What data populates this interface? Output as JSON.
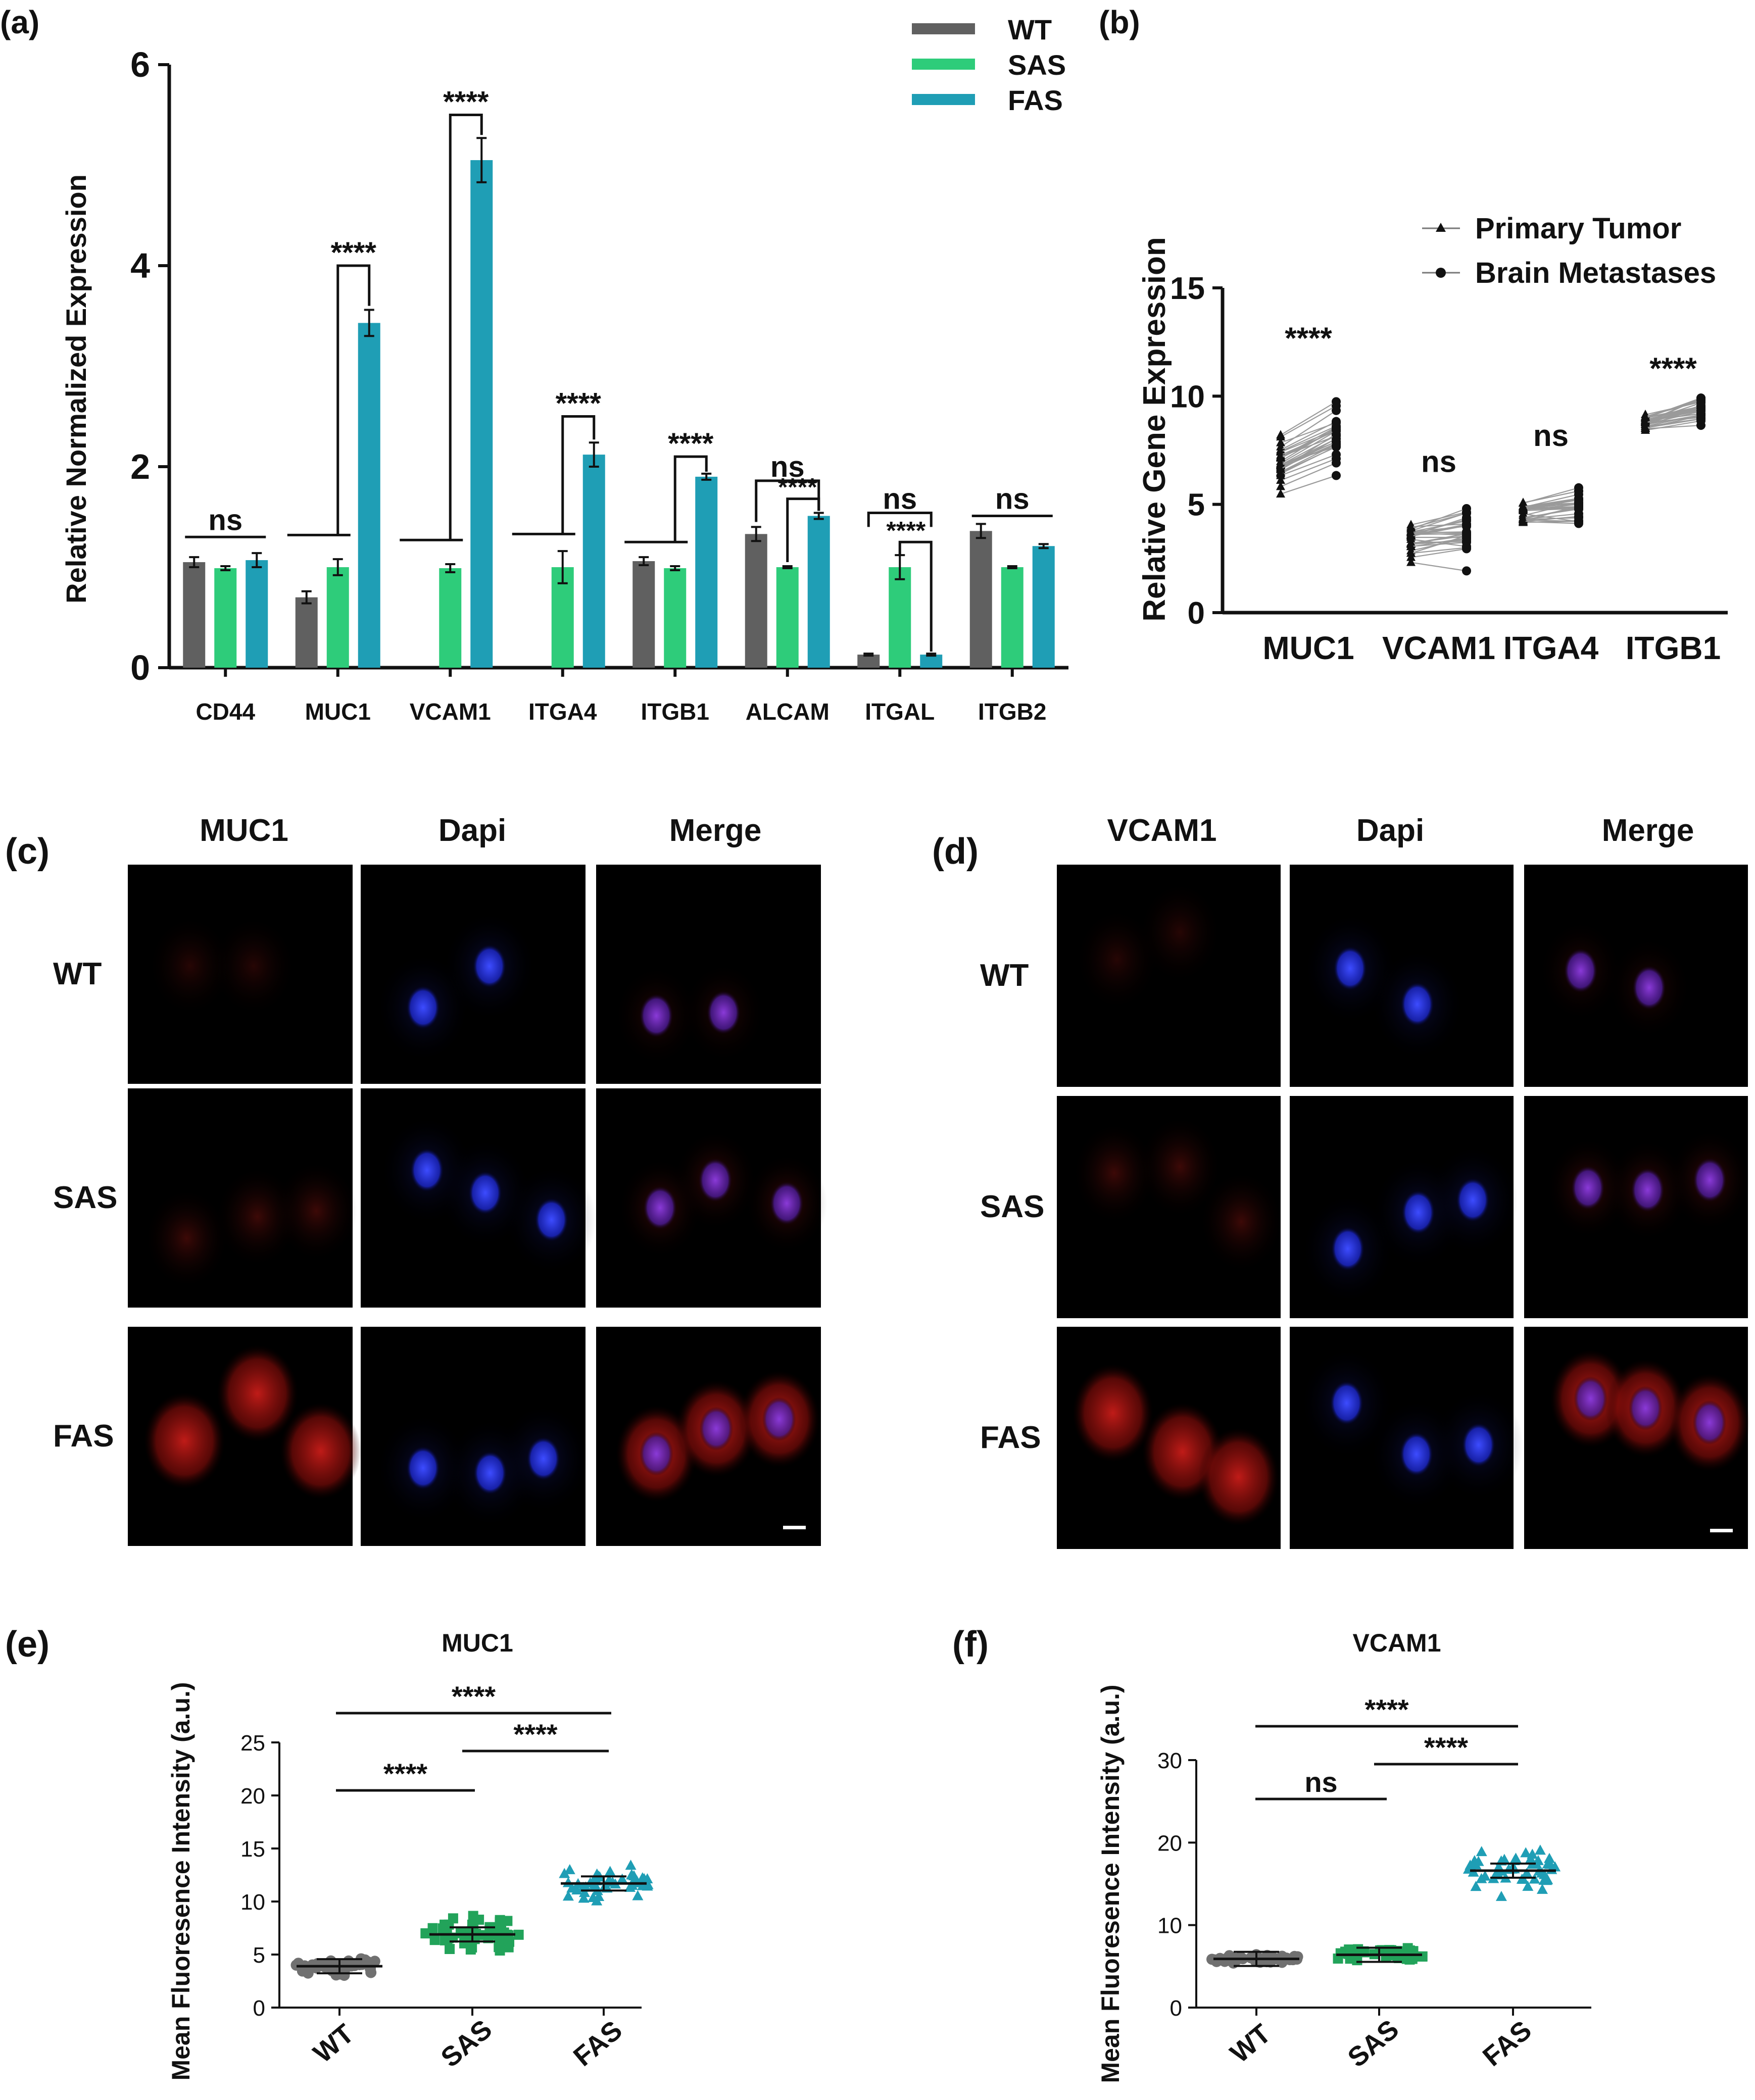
{
  "chart_data": [
    {
      "panel": "(a)",
      "type": "bar",
      "ylabel": "Relative Normalized Expression",
      "ylim": [
        0,
        6
      ],
      "yticks": [
        0,
        2,
        4,
        6
      ],
      "categories": [
        "CD44",
        "MUC1",
        "VCAM1",
        "ITGA4",
        "ITGB1",
        "ALCAM",
        "ITGAL",
        "ITGB2"
      ],
      "series": [
        {
          "name": "WT",
          "color": "#606060",
          "values": [
            1.05,
            0.7,
            null,
            null,
            1.06,
            1.33,
            0.13,
            1.36
          ],
          "errors": [
            0.05,
            0.06,
            0,
            0,
            0.04,
            0.07,
            0.01,
            0.07
          ]
        },
        {
          "name": "SAS",
          "color": "#2ecc7a",
          "values": [
            0.99,
            1.0,
            0.99,
            1.0,
            0.99,
            1.0,
            1.0,
            1.0
          ],
          "errors": [
            0.02,
            0.08,
            0.04,
            0.16,
            0.02,
            0.01,
            0.12,
            0.01
          ]
        },
        {
          "name": "FAS",
          "color": "#1f9eb5",
          "values": [
            1.07,
            3.43,
            5.05,
            2.12,
            1.9,
            1.51,
            0.13,
            1.21
          ],
          "errors": [
            0.07,
            0.13,
            0.22,
            0.12,
            0.03,
            0.03,
            0.01,
            0.02
          ]
        }
      ],
      "significance": [
        "ns",
        "****",
        "****",
        "****",
        "****",
        "ns",
        "****",
        "ns",
        "****",
        "ns"
      ]
    },
    {
      "panel": "(b)",
      "type": "scatter",
      "ylabel": "Relative Gene Expression",
      "ylim": [
        0,
        15
      ],
      "yticks": [
        0,
        5,
        10,
        15
      ],
      "categories": [
        "MUC1",
        "VCAM1",
        "ITGA4",
        "ITGB1"
      ],
      "legend": [
        "Primary Tumor",
        "Brain Metastases"
      ],
      "significance": [
        "****",
        "ns",
        "ns",
        "****"
      ],
      "means": [
        {
          "primary": 6.8,
          "brain": 8.0
        },
        {
          "primary": 3.4,
          "brain": 3.7
        },
        {
          "primary": 4.6,
          "brain": 4.9
        },
        {
          "primary": 8.8,
          "brain": 9.4
        }
      ]
    },
    {
      "panel": "(e)",
      "type": "scatter",
      "title": "MUC1",
      "ylabel": "Mean Fluoresence Intensity (a.u.)",
      "ylim": [
        0,
        25
      ],
      "yticks": [
        0,
        5,
        10,
        15,
        20,
        25
      ],
      "categories": [
        "WT",
        "SAS",
        "FAS"
      ],
      "means": [
        3.9,
        6.9,
        11.7
      ],
      "colors": [
        "#707070",
        "#22a35a",
        "#1f9eb5"
      ],
      "markers": [
        "circle",
        "square",
        "triangle"
      ],
      "significance": [
        "****",
        "****",
        "****"
      ]
    },
    {
      "panel": "(f)",
      "type": "scatter",
      "title": "VCAM1",
      "ylabel": "Mean Fluoresence Intensity (a.u.)",
      "ylim": [
        0,
        30
      ],
      "yticks": [
        0,
        10,
        20,
        30
      ],
      "categories": [
        "WT",
        "SAS",
        "FAS"
      ],
      "means": [
        5.9,
        6.4,
        16.6
      ],
      "colors": [
        "#707070",
        "#22a35a",
        "#1f9eb5"
      ],
      "markers": [
        "circle",
        "square",
        "triangle"
      ],
      "significance": [
        "****",
        "ns",
        "****"
      ]
    }
  ],
  "panels": {
    "a": "(a)",
    "b": "(b)",
    "c": "(c)",
    "d": "(d)",
    "e": "(e)",
    "f": "(f)"
  },
  "micrographs": {
    "c": {
      "columns": [
        "MUC1",
        "Dapi",
        "Merge"
      ],
      "rows": [
        "WT",
        "SAS",
        "FAS"
      ],
      "column_colors": [
        "#e8202a",
        "#4a6fd6",
        "#111111"
      ]
    },
    "d": {
      "columns": [
        "VCAM1",
        "Dapi",
        "Merge"
      ],
      "rows": [
        "WT",
        "SAS",
        "FAS"
      ],
      "column_colors": [
        "#e8202a",
        "#4a6fd6",
        "#111111"
      ]
    }
  }
}
